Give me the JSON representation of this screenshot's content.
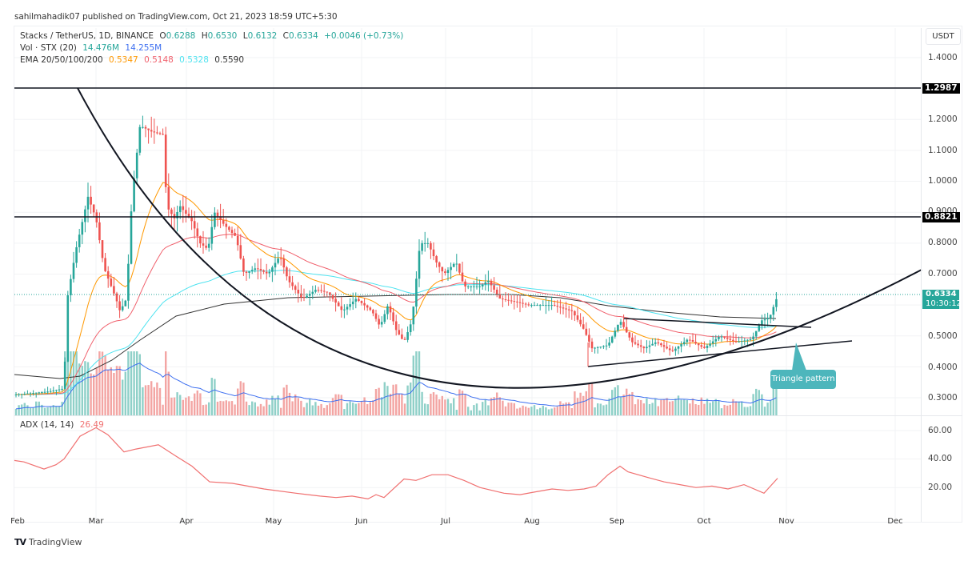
{
  "publisher": "sahilmahadik07 published on TradingView.com, Oct 21, 2023 18:59 UTC+5:30",
  "legend": {
    "symbol": "Stacks / TetherUS, 1D, BINANCE",
    "open_label": "O",
    "open": "0.6288",
    "high_label": "H",
    "high": "0.6530",
    "low_label": "L",
    "low": "0.6132",
    "close_label": "C",
    "close": "0.6334",
    "change": "+0.0046 (+0.73%)",
    "vol_label": "Vol · STX (20)",
    "vol1": "14.476M",
    "vol2": "14.255M",
    "ema_label": "EMA 20/50/100/200",
    "ema20": "0.5347",
    "ema50": "0.5148",
    "ema100": "0.5328",
    "ema200": "0.5590"
  },
  "adx_legend": {
    "label": "ADX (14, 14)",
    "value": "26.49"
  },
  "price_scale": {
    "currency": "USDT",
    "ticks": [
      "1.4000",
      "1.2000",
      "1.1000",
      "1.0000",
      "0.9000",
      "0.8000",
      "0.7000",
      "0.5000",
      "0.4000",
      "0.3000"
    ],
    "resistance_tags": [
      "1.2987",
      "0.8821"
    ],
    "current_price": "0.6334",
    "countdown": "10:30:12"
  },
  "adx_scale": {
    "ticks": [
      "60.00",
      "40.00",
      "20.00"
    ]
  },
  "time_axis": {
    "months": [
      "Feb",
      "Mar",
      "Apr",
      "May",
      "Jun",
      "Jul",
      "Aug",
      "Sep",
      "Oct",
      "Nov",
      "Dec"
    ]
  },
  "annotation": {
    "callout": "Triangle pattern"
  },
  "footer": {
    "brand": "TradingView"
  },
  "colors": {
    "up": "#26a69a",
    "down": "#ef5350",
    "ema20": "#ff9800",
    "ema50": "#f0616d",
    "ema100": "#4fe3f0",
    "ema200": "#333333",
    "vol_ma": "#3d6ff0",
    "adx": "#f07070",
    "callout": "#4db6bc"
  },
  "chart_data": [
    {
      "type": "candlestick",
      "title": "Stacks / TetherUS, 1D, BINANCE",
      "xlabel": "",
      "ylabel": "USDT",
      "ylim": [
        0.26,
        1.44
      ],
      "grid": true,
      "x_ticks": [
        "Feb",
        "Mar",
        "Apr",
        "May",
        "Jun",
        "Jul",
        "Aug",
        "Sep",
        "Oct",
        "Nov",
        "Dec"
      ],
      "last_ohlc": {
        "open": 0.6288,
        "high": 0.653,
        "low": 0.6132,
        "close": 0.6334,
        "change": 0.0046,
        "change_pct": 0.73
      },
      "horizontal_levels": [
        1.2987,
        0.8821
      ],
      "approx_closes_by_month": {
        "Feb": 0.32,
        "Mar": 0.85,
        "Apr": 0.9,
        "May": 0.7,
        "Jun": 0.6,
        "Jul": 0.65,
        "Aug": 0.58,
        "Sep": 0.47,
        "Oct": 0.5,
        "Oct21": 0.6334
      },
      "peak": {
        "date": "Mar ~20",
        "high": 1.3
      },
      "ema": {
        "ema20": 0.5347,
        "ema50": 0.5148,
        "ema100": 0.5328,
        "ema200": 0.559
      },
      "volume": {
        "sma20": "14.255M",
        "last": "14.476M"
      },
      "patterns": [
        "Rounding bottom (cup) curve",
        "Symmetrical triangle breakout"
      ],
      "annotations": [
        "Triangle pattern"
      ]
    },
    {
      "type": "line",
      "title": "ADX (14, 14)",
      "ylim": [
        0,
        70
      ],
      "y_ticks": [
        60,
        40,
        20
      ],
      "last_value": 26.49,
      "approx_values_by_month": {
        "Feb": 39,
        "Mar": 62,
        "Mar_end": 50,
        "Apr": 33,
        "May": 23,
        "Jun": 15,
        "Jun_end": 27,
        "Jul": 22,
        "Aug": 13,
        "Sep": 33,
        "Oct": 19,
        "Oct_end": 26.49
      }
    }
  ]
}
